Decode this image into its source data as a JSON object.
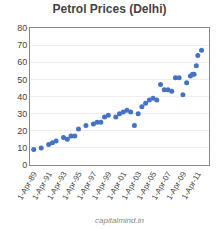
{
  "chart_data": {
    "type": "scatter",
    "title": "Petrol Prices (Delhi)",
    "annotations": [
      {
        "text": "capitalmind.in"
      }
    ],
    "color": "#4472C4",
    "marker": "circle",
    "grid": "y",
    "xlim": [
      1988.5,
      2012.5
    ],
    "xticks": [
      {
        "value": 1989,
        "label": "1-Apr-89"
      },
      {
        "value": 1991,
        "label": "1-Apr-91"
      },
      {
        "value": 1993,
        "label": "1-Apr-93"
      },
      {
        "value": 1995,
        "label": "1-Apr-95"
      },
      {
        "value": 1997,
        "label": "1-Apr-97"
      },
      {
        "value": 1999,
        "label": "1-Apr-99"
      },
      {
        "value": 2001,
        "label": "1-Apr-01"
      },
      {
        "value": 2003,
        "label": "1-Apr-03"
      },
      {
        "value": 2005,
        "label": "1-Apr-05"
      },
      {
        "value": 2007,
        "label": "1-Apr-07"
      },
      {
        "value": 2009,
        "label": "1-Apr-09"
      },
      {
        "value": 2011,
        "label": "1-Apr-11"
      }
    ],
    "ylim": [
      0,
      80
    ],
    "yticks": [
      0,
      10,
      20,
      30,
      40,
      50,
      60,
      70,
      80
    ],
    "x": [
      1989,
      1990,
      1991,
      1991.5,
      1992,
      1993,
      1993.5,
      1994,
      1994.5,
      1995,
      1996,
      1997,
      1997.5,
      1998,
      1998.5,
      1999,
      2000,
      2000.5,
      2001,
      2001.5,
      2002,
      2002.5,
      2003,
      2003.5,
      2004,
      2004.5,
      2005,
      2005.5,
      2006,
      2006.5,
      2007,
      2007.5,
      2008,
      2008.5,
      2009,
      2009.5,
      2010,
      2010.3,
      2010.5,
      2010.8,
      2011,
      2011.5
    ],
    "values": [
      9,
      10,
      12,
      13,
      14,
      16,
      15,
      17,
      17,
      21,
      23,
      24,
      25,
      25,
      28,
      29,
      28,
      30,
      31,
      32,
      31,
      23,
      30,
      34,
      36,
      38,
      39,
      38,
      47,
      44,
      44,
      43,
      51,
      51,
      41,
      48,
      52,
      53,
      53,
      58,
      64,
      67
    ]
  }
}
